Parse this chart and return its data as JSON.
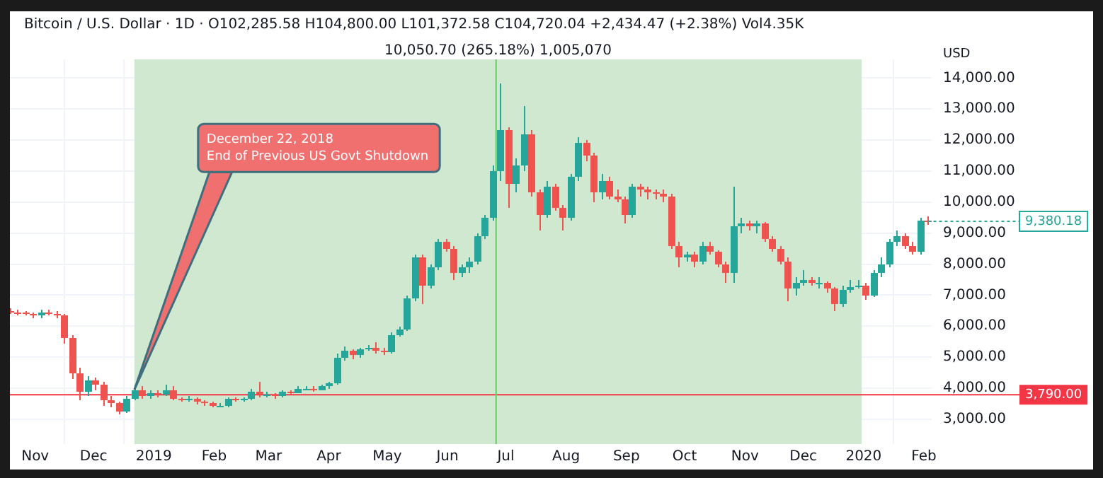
{
  "chart_data": {
    "type": "candlestick",
    "subtitle": "Bitcoin / U.S. Dollar · 1D · O102,285.58 H104,800.00 L101,372.58 C104,720.04 +2,434.47 (+2.38%) Vol4.35K",
    "ylabel": "USD",
    "x": [
      "2018-10-19",
      "2018-10-23",
      "2018-10-27",
      "2018-10-31",
      "2018-11-04",
      "2018-11-08",
      "2018-11-12",
      "2018-11-16",
      "2018-11-20",
      "2018-11-24",
      "2018-11-28",
      "2018-12-02",
      "2018-12-06",
      "2018-12-10",
      "2018-12-14",
      "2018-12-18",
      "2018-12-22",
      "2018-12-26",
      "2018-12-30",
      "2019-01-03",
      "2019-01-07",
      "2019-01-11",
      "2019-01-15",
      "2019-01-19",
      "2019-01-23",
      "2019-01-27",
      "2019-01-31",
      "2019-02-04",
      "2019-02-08",
      "2019-02-12",
      "2019-02-16",
      "2019-02-20",
      "2019-02-24",
      "2019-02-28",
      "2019-03-04",
      "2019-03-08",
      "2019-03-12",
      "2019-03-16",
      "2019-03-20",
      "2019-03-24",
      "2019-03-28",
      "2019-04-01",
      "2019-04-05",
      "2019-04-09",
      "2019-04-13",
      "2019-04-17",
      "2019-04-21",
      "2019-04-25",
      "2019-04-29",
      "2019-05-03",
      "2019-05-07",
      "2019-05-11",
      "2019-05-15",
      "2019-05-19",
      "2019-05-23",
      "2019-05-27",
      "2019-05-31",
      "2019-06-04",
      "2019-06-08",
      "2019-06-12",
      "2019-06-16",
      "2019-06-20",
      "2019-06-24",
      "2019-06-28",
      "2019-07-02",
      "2019-07-06",
      "2019-07-10",
      "2019-07-14",
      "2019-07-18",
      "2019-07-22",
      "2019-07-26",
      "2019-07-30",
      "2019-08-03",
      "2019-08-07",
      "2019-08-11",
      "2019-08-15",
      "2019-08-19",
      "2019-08-23",
      "2019-08-27",
      "2019-08-31",
      "2019-09-04",
      "2019-09-08",
      "2019-09-12",
      "2019-09-16",
      "2019-09-20",
      "2019-09-24",
      "2019-09-28",
      "2019-10-02",
      "2019-10-06",
      "2019-10-10",
      "2019-10-14",
      "2019-10-18",
      "2019-10-22",
      "2019-10-26",
      "2019-10-30",
      "2019-11-03",
      "2019-11-07",
      "2019-11-11",
      "2019-11-15",
      "2019-11-19",
      "2019-11-23",
      "2019-11-27",
      "2019-12-01",
      "2019-12-05",
      "2019-12-09",
      "2019-12-13",
      "2019-12-17",
      "2019-12-21",
      "2019-12-25",
      "2019-12-29",
      "2020-01-02",
      "2020-01-06",
      "2020-01-10",
      "2020-01-14",
      "2020-01-18",
      "2020-01-22",
      "2020-01-26",
      "2020-01-30",
      "2020-02-03"
    ],
    "ohlc": [
      [
        6500,
        6560,
        6380,
        6450
      ],
      [
        6450,
        6520,
        6350,
        6420
      ],
      [
        6420,
        6500,
        6330,
        6400
      ],
      [
        6400,
        6460,
        6250,
        6330
      ],
      [
        6330,
        6520,
        6280,
        6450
      ],
      [
        6450,
        6540,
        6330,
        6400
      ],
      [
        6400,
        6480,
        6280,
        6350
      ],
      [
        6350,
        6400,
        5450,
        5600
      ],
      [
        5600,
        5700,
        4300,
        4500
      ],
      [
        4500,
        4650,
        3600,
        3900
      ],
      [
        3900,
        4400,
        3750,
        4250
      ],
      [
        4250,
        4350,
        3950,
        4100
      ],
      [
        4100,
        4200,
        3450,
        3600
      ],
      [
        3600,
        3750,
        3400,
        3500
      ],
      [
        3500,
        3580,
        3150,
        3250
      ],
      [
        3250,
        3750,
        3200,
        3650
      ],
      [
        3650,
        4100,
        3600,
        3950
      ],
      [
        3950,
        4050,
        3650,
        3750
      ],
      [
        3750,
        3950,
        3680,
        3850
      ],
      [
        3850,
        3950,
        3720,
        3800
      ],
      [
        3800,
        4100,
        3750,
        3950
      ],
      [
        3950,
        4050,
        3600,
        3650
      ],
      [
        3650,
        3720,
        3550,
        3600
      ],
      [
        3600,
        3750,
        3550,
        3650
      ],
      [
        3650,
        3700,
        3480,
        3550
      ],
      [
        3550,
        3620,
        3450,
        3500
      ],
      [
        3500,
        3560,
        3400,
        3450
      ],
      [
        3450,
        3520,
        3380,
        3450
      ],
      [
        3450,
        3700,
        3400,
        3650
      ],
      [
        3650,
        3720,
        3560,
        3600
      ],
      [
        3600,
        3720,
        3560,
        3650
      ],
      [
        3650,
        3980,
        3620,
        3900
      ],
      [
        3900,
        4200,
        3700,
        3800
      ],
      [
        3800,
        3880,
        3720,
        3800
      ],
      [
        3800,
        3860,
        3680,
        3750
      ],
      [
        3750,
        3950,
        3700,
        3900
      ],
      [
        3900,
        3950,
        3800,
        3850
      ],
      [
        3850,
        4050,
        3820,
        4000
      ],
      [
        4000,
        4080,
        3920,
        4000
      ],
      [
        4000,
        4050,
        3900,
        3950
      ],
      [
        3950,
        4100,
        3920,
        4050
      ],
      [
        4050,
        4200,
        4000,
        4150
      ],
      [
        4150,
        5100,
        4100,
        5000
      ],
      [
        5000,
        5350,
        4900,
        5200
      ],
      [
        5200,
        5250,
        4950,
        5050
      ],
      [
        5050,
        5300,
        5000,
        5250
      ],
      [
        5250,
        5400,
        5200,
        5300
      ],
      [
        5300,
        5500,
        5100,
        5200
      ],
      [
        5200,
        5300,
        5050,
        5150
      ],
      [
        5150,
        5800,
        5100,
        5700
      ],
      [
        5700,
        6000,
        5650,
        5900
      ],
      [
        5900,
        7000,
        5850,
        6900
      ],
      [
        6900,
        8300,
        6800,
        8200
      ],
      [
        8200,
        8300,
        6700,
        7300
      ],
      [
        7300,
        8000,
        7200,
        7900
      ],
      [
        7900,
        8800,
        7800,
        8700
      ],
      [
        8700,
        8800,
        8400,
        8500
      ],
      [
        8500,
        8600,
        7500,
        7700
      ],
      [
        7700,
        8000,
        7600,
        7900
      ],
      [
        7900,
        8200,
        7700,
        8100
      ],
      [
        8100,
        9000,
        8000,
        8900
      ],
      [
        8900,
        9600,
        8800,
        9500
      ],
      [
        9500,
        11200,
        9400,
        11000
      ],
      [
        11000,
        13840,
        10700,
        12300
      ],
      [
        12300,
        12400,
        9800,
        10600
      ],
      [
        10600,
        11400,
        10300,
        11200
      ],
      [
        11200,
        13100,
        11000,
        12200
      ],
      [
        12200,
        12300,
        10200,
        10300
      ],
      [
        10300,
        10400,
        9100,
        9600
      ],
      [
        9600,
        10700,
        9500,
        10500
      ],
      [
        10500,
        10600,
        9700,
        9800
      ],
      [
        9800,
        9900,
        9100,
        9500
      ],
      [
        9500,
        10900,
        9400,
        10800
      ],
      [
        10800,
        12100,
        10700,
        11900
      ],
      [
        11900,
        12000,
        11300,
        11500
      ],
      [
        11500,
        11600,
        10000,
        10300
      ],
      [
        10300,
        10900,
        10100,
        10700
      ],
      [
        10700,
        10800,
        10100,
        10200
      ],
      [
        10200,
        10400,
        10000,
        10100
      ],
      [
        10100,
        10200,
        9300,
        9600
      ],
      [
        9600,
        10600,
        9500,
        10500
      ],
      [
        10500,
        10600,
        10200,
        10400
      ],
      [
        10400,
        10500,
        10100,
        10300
      ],
      [
        10300,
        10400,
        10100,
        10250
      ],
      [
        10250,
        10400,
        10000,
        10200
      ],
      [
        10200,
        10250,
        8500,
        8600
      ],
      [
        8600,
        8700,
        7900,
        8200
      ],
      [
        8200,
        8400,
        8100,
        8300
      ],
      [
        8300,
        8400,
        7900,
        8100
      ],
      [
        8100,
        8700,
        8000,
        8600
      ],
      [
        8600,
        8700,
        8300,
        8400
      ],
      [
        8400,
        8450,
        7900,
        8000
      ],
      [
        8000,
        8100,
        7400,
        7700
      ],
      [
        7700,
        10500,
        7400,
        9200
      ],
      [
        9200,
        9500,
        9000,
        9300
      ],
      [
        9300,
        9400,
        9100,
        9200
      ],
      [
        9200,
        9400,
        9000,
        9300
      ],
      [
        9300,
        9350,
        8700,
        8800
      ],
      [
        8800,
        8900,
        8400,
        8500
      ],
      [
        8500,
        8600,
        8000,
        8100
      ],
      [
        8100,
        8200,
        6800,
        7200
      ],
      [
        7200,
        7600,
        7000,
        7400
      ],
      [
        7400,
        7800,
        7300,
        7500
      ],
      [
        7500,
        7600,
        7300,
        7400
      ],
      [
        7400,
        7600,
        7200,
        7400
      ],
      [
        7400,
        7450,
        7100,
        7200
      ],
      [
        7200,
        7250,
        6500,
        6700
      ],
      [
        6700,
        7300,
        6600,
        7150
      ],
      [
        7150,
        7500,
        7100,
        7250
      ],
      [
        7250,
        7500,
        7200,
        7300
      ],
      [
        7300,
        7400,
        6850,
        7000
      ],
      [
        7000,
        7800,
        6950,
        7700
      ],
      [
        7700,
        8200,
        7600,
        8000
      ],
      [
        8000,
        8800,
        7900,
        8700
      ],
      [
        8700,
        9100,
        8600,
        8900
      ],
      [
        8900,
        9000,
        8500,
        8600
      ],
      [
        8600,
        8700,
        8300,
        8400
      ],
      [
        8400,
        9500,
        8300,
        9400
      ],
      [
        9400,
        9550,
        9250,
        9380.18
      ]
    ],
    "xlim": [
      "2018-10-19",
      "2020-02-05"
    ],
    "xticks": [
      {
        "value": "2018-11-01",
        "label": "Nov"
      },
      {
        "value": "2018-12-01",
        "label": "Dec"
      },
      {
        "value": "2019-01-01",
        "label": "2019"
      },
      {
        "value": "2019-02-01",
        "label": "Feb"
      },
      {
        "value": "2019-03-01",
        "label": "Mar"
      },
      {
        "value": "2019-04-01",
        "label": "Apr"
      },
      {
        "value": "2019-05-01",
        "label": "May"
      },
      {
        "value": "2019-06-01",
        "label": "Jun"
      },
      {
        "value": "2019-07-01",
        "label": "Jul"
      },
      {
        "value": "2019-08-01",
        "label": "Aug"
      },
      {
        "value": "2019-09-01",
        "label": "Sep"
      },
      {
        "value": "2019-10-01",
        "label": "Oct"
      },
      {
        "value": "2019-11-01",
        "label": "Nov"
      },
      {
        "value": "2019-12-01",
        "label": "Dec"
      },
      {
        "value": "2020-01-01",
        "label": "2020"
      },
      {
        "value": "2020-02-01",
        "label": "Feb"
      }
    ],
    "ylim": [
      2200,
      14600
    ],
    "yticks": [
      {
        "value": 3000,
        "label": "3,000.00"
      },
      {
        "value": 4000,
        "label": "4,000.00"
      },
      {
        "value": 5000,
        "label": "5,000.00"
      },
      {
        "value": 6000,
        "label": "6,000.00"
      },
      {
        "value": 7000,
        "label": "7,000.00"
      },
      {
        "value": 8000,
        "label": "8,000.00"
      },
      {
        "value": 9000,
        "label": "9,000.00"
      },
      {
        "value": 10000,
        "label": "10,000.00"
      },
      {
        "value": 11000,
        "label": "11,000.00"
      },
      {
        "value": 12000,
        "label": "12,000.00"
      },
      {
        "value": 13000,
        "label": "13,000.00"
      },
      {
        "value": 14000,
        "label": "14,000.00"
      }
    ],
    "grid": true,
    "legend": false,
    "bands": [
      {
        "axis": "x",
        "from": "2018-12-22",
        "to": "2019-12-31",
        "label": "10,050.70 (265.18%) 1,005,070",
        "color": "#cfe8cf"
      }
    ],
    "ref_lines": [
      {
        "axis": "y",
        "value": 3790,
        "label": "3,790.00",
        "color": "#f23645"
      },
      {
        "axis": "x",
        "value": "2019-06-26",
        "color": "#66cc66"
      }
    ],
    "annotations": [
      {
        "text": "December 22, 2018\nEnd of Previous US Govt Shutdown",
        "x": "2018-12-22",
        "y": 3950
      },
      {
        "text": "9,380.18",
        "x": "2020-02-03",
        "y": 9380.18
      }
    ]
  }
}
